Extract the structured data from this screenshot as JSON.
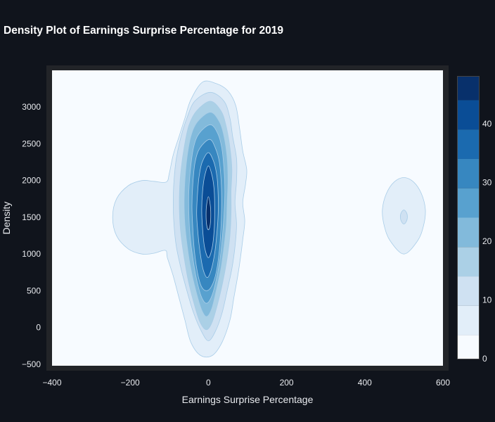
{
  "chart_data": {
    "type": "contour",
    "title": "Density Plot of Earnings Surprise Percentage for 2019",
    "xlabel": "Earnings Surprise Percentage",
    "ylabel": "Density",
    "xlim": [
      -400,
      600
    ],
    "ylim": [
      -520,
      3500
    ],
    "x_ticks": [
      -400,
      -200,
      0,
      200,
      400,
      600
    ],
    "x_tick_labels": [
      "−400",
      "−200",
      "0",
      "200",
      "400",
      "600"
    ],
    "y_ticks": [
      -500,
      0,
      500,
      1000,
      1500,
      2000,
      2500,
      3000
    ],
    "y_tick_labels": [
      "−500",
      "0",
      "500",
      "1000",
      "1500",
      "2000",
      "2500",
      "3000"
    ],
    "colorscale": "Blues",
    "colorbar": {
      "range": [
        0,
        48
      ],
      "ticks": [
        0,
        10,
        20,
        30,
        40
      ],
      "tick_labels": [
        "0",
        "10",
        "20",
        "30",
        "40"
      ],
      "bands": [
        {
          "from": 0,
          "to": 4,
          "color": "#f7fbff"
        },
        {
          "from": 4,
          "to": 9,
          "color": "#e2eef9"
        },
        {
          "from": 9,
          "to": 14,
          "color": "#cfe1f2"
        },
        {
          "from": 14,
          "to": 19,
          "color": "#abd0e6"
        },
        {
          "from": 19,
          "to": 24,
          "color": "#82badb"
        },
        {
          "from": 24,
          "to": 29,
          "color": "#58a1cf"
        },
        {
          "from": 29,
          "to": 34,
          "color": "#3787c0"
        },
        {
          "from": 34,
          "to": 39,
          "color": "#1b6aaf"
        },
        {
          "from": 39,
          "to": 44,
          "color": "#0a4d96"
        },
        {
          "from": 44,
          "to": 48,
          "color": "#08306b"
        }
      ]
    },
    "density_peaks": [
      {
        "x": 0,
        "y": 1550,
        "peak_level": 44
      },
      {
        "x": -180,
        "y": 1500,
        "peak_level": 5
      },
      {
        "x": 500,
        "y": 1500,
        "peak_level": 9
      }
    ],
    "contours": [
      {
        "level": 4,
        "color": "#e2eef9",
        "points": [
          [
            -15,
            3340
          ],
          [
            20,
            3320
          ],
          [
            50,
            3220
          ],
          [
            70,
            3020
          ],
          [
            80,
            2700
          ],
          [
            88,
            2400
          ],
          [
            98,
            2150
          ],
          [
            95,
            1950
          ],
          [
            88,
            1700
          ],
          [
            93,
            1450
          ],
          [
            88,
            1200
          ],
          [
            82,
            950
          ],
          [
            75,
            700
          ],
          [
            65,
            400
          ],
          [
            55,
            100
          ],
          [
            35,
            -200
          ],
          [
            10,
            -380
          ],
          [
            -20,
            -380
          ],
          [
            -45,
            -200
          ],
          [
            -60,
            100
          ],
          [
            -75,
            400
          ],
          [
            -90,
            700
          ],
          [
            -105,
            950
          ],
          [
            -110,
            1050
          ],
          [
            -140,
            1010
          ],
          [
            -170,
            1000
          ],
          [
            -205,
            1070
          ],
          [
            -235,
            1250
          ],
          [
            -245,
            1500
          ],
          [
            -235,
            1750
          ],
          [
            -205,
            1930
          ],
          [
            -170,
            2000
          ],
          [
            -140,
            1990
          ],
          [
            -108,
            1980
          ],
          [
            -100,
            2100
          ],
          [
            -90,
            2350
          ],
          [
            -75,
            2600
          ],
          [
            -60,
            2850
          ],
          [
            -45,
            3100
          ]
        ]
      },
      {
        "level": 4,
        "color": "#e2eef9",
        "points": [
          [
            500,
            2040
          ],
          [
            525,
            1980
          ],
          [
            545,
            1820
          ],
          [
            555,
            1600
          ],
          [
            550,
            1380
          ],
          [
            535,
            1180
          ],
          [
            500,
            1000
          ],
          [
            465,
            1180
          ],
          [
            450,
            1380
          ],
          [
            445,
            1600
          ],
          [
            455,
            1820
          ],
          [
            475,
            1980
          ]
        ]
      },
      {
        "level": 9,
        "color": "#cfe1f2",
        "points": [
          [
            5,
            3200
          ],
          [
            40,
            3080
          ],
          [
            55,
            2850
          ],
          [
            62,
            2600
          ],
          [
            72,
            2300
          ],
          [
            72,
            2000
          ],
          [
            68,
            1700
          ],
          [
            72,
            1400
          ],
          [
            68,
            1100
          ],
          [
            60,
            800
          ],
          [
            48,
            500
          ],
          [
            35,
            200
          ],
          [
            18,
            -50
          ],
          [
            0,
            -180
          ],
          [
            -18,
            -50
          ],
          [
            -38,
            200
          ],
          [
            -55,
            500
          ],
          [
            -70,
            800
          ],
          [
            -82,
            1100
          ],
          [
            -88,
            1400
          ],
          [
            -90,
            1700
          ],
          [
            -88,
            2000
          ],
          [
            -82,
            2300
          ],
          [
            -70,
            2600
          ],
          [
            -55,
            2850
          ],
          [
            -35,
            3080
          ]
        ]
      },
      {
        "level": 14,
        "color": "#abd0e6",
        "points": [
          [
            5,
            3080
          ],
          [
            32,
            2950
          ],
          [
            45,
            2750
          ],
          [
            55,
            2450
          ],
          [
            60,
            2150
          ],
          [
            58,
            1850
          ],
          [
            58,
            1550
          ],
          [
            55,
            1250
          ],
          [
            48,
            950
          ],
          [
            38,
            650
          ],
          [
            25,
            350
          ],
          [
            10,
            80
          ],
          [
            -5,
            -30
          ],
          [
            -22,
            80
          ],
          [
            -38,
            350
          ],
          [
            -52,
            650
          ],
          [
            -62,
            950
          ],
          [
            -70,
            1250
          ],
          [
            -74,
            1550
          ],
          [
            -74,
            1850
          ],
          [
            -70,
            2150
          ],
          [
            -62,
            2450
          ],
          [
            -50,
            2750
          ],
          [
            -30,
            2950
          ]
        ]
      },
      {
        "level": 19,
        "color": "#82badb",
        "points": [
          [
            5,
            2930
          ],
          [
            28,
            2800
          ],
          [
            40,
            2600
          ],
          [
            48,
            2300
          ],
          [
            50,
            2000
          ],
          [
            48,
            1700
          ],
          [
            46,
            1400
          ],
          [
            40,
            1100
          ],
          [
            32,
            800
          ],
          [
            20,
            500
          ],
          [
            8,
            250
          ],
          [
            -5,
            150
          ],
          [
            -18,
            250
          ],
          [
            -32,
            500
          ],
          [
            -45,
            800
          ],
          [
            -54,
            1100
          ],
          [
            -60,
            1400
          ],
          [
            -62,
            1700
          ],
          [
            -60,
            2000
          ],
          [
            -55,
            2300
          ],
          [
            -45,
            2600
          ],
          [
            -28,
            2800
          ]
        ]
      },
      {
        "level": 24,
        "color": "#58a1cf",
        "points": [
          [
            5,
            2760
          ],
          [
            24,
            2640
          ],
          [
            34,
            2450
          ],
          [
            40,
            2150
          ],
          [
            42,
            1850
          ],
          [
            40,
            1550
          ],
          [
            36,
            1250
          ],
          [
            30,
            950
          ],
          [
            20,
            650
          ],
          [
            8,
            420
          ],
          [
            -5,
            330
          ],
          [
            -18,
            420
          ],
          [
            -30,
            650
          ],
          [
            -40,
            950
          ],
          [
            -47,
            1250
          ],
          [
            -50,
            1550
          ],
          [
            -50,
            1850
          ],
          [
            -46,
            2150
          ],
          [
            -38,
            2450
          ],
          [
            -24,
            2640
          ]
        ]
      },
      {
        "level": 29,
        "color": "#3787c0",
        "points": [
          [
            3,
            2560
          ],
          [
            18,
            2440
          ],
          [
            28,
            2250
          ],
          [
            33,
            1950
          ],
          [
            34,
            1650
          ],
          [
            32,
            1350
          ],
          [
            28,
            1050
          ],
          [
            20,
            750
          ],
          [
            8,
            560
          ],
          [
            -5,
            500
          ],
          [
            -18,
            560
          ],
          [
            -28,
            750
          ],
          [
            -36,
            1050
          ],
          [
            -40,
            1350
          ],
          [
            -42,
            1650
          ],
          [
            -40,
            1950
          ],
          [
            -34,
            2250
          ],
          [
            -22,
            2440
          ]
        ]
      },
      {
        "level": 34,
        "color": "#1b6aaf",
        "points": [
          [
            0,
            2380
          ],
          [
            14,
            2250
          ],
          [
            22,
            2050
          ],
          [
            25,
            1800
          ],
          [
            25,
            1550
          ],
          [
            22,
            1300
          ],
          [
            17,
            1050
          ],
          [
            8,
            800
          ],
          [
            -3,
            680
          ],
          [
            -14,
            800
          ],
          [
            -22,
            1050
          ],
          [
            -27,
            1300
          ],
          [
            -30,
            1550
          ],
          [
            -28,
            1800
          ],
          [
            -24,
            2050
          ],
          [
            -16,
            2250
          ]
        ]
      },
      {
        "level": 39,
        "color": "#0a4d96",
        "points": [
          [
            0,
            2200
          ],
          [
            10,
            2050
          ],
          [
            15,
            1850
          ],
          [
            16,
            1600
          ],
          [
            15,
            1350
          ],
          [
            10,
            1100
          ],
          [
            0,
            950
          ],
          [
            -10,
            1100
          ],
          [
            -15,
            1350
          ],
          [
            -17,
            1600
          ],
          [
            -15,
            1850
          ],
          [
            -10,
            2050
          ]
        ]
      },
      {
        "level": 44,
        "color": "#08306b",
        "points": [
          [
            0,
            1780
          ],
          [
            5,
            1650
          ],
          [
            6,
            1500
          ],
          [
            4,
            1380
          ],
          [
            0,
            1330
          ],
          [
            -4,
            1380
          ],
          [
            -6,
            1500
          ],
          [
            -5,
            1650
          ]
        ]
      },
      {
        "level": 9,
        "color": "#cfe1f2",
        "points": [
          [
            500,
            1600
          ],
          [
            507,
            1560
          ],
          [
            509,
            1500
          ],
          [
            506,
            1440
          ],
          [
            500,
            1410
          ],
          [
            494,
            1440
          ],
          [
            491,
            1500
          ],
          [
            493,
            1560
          ]
        ]
      }
    ]
  }
}
